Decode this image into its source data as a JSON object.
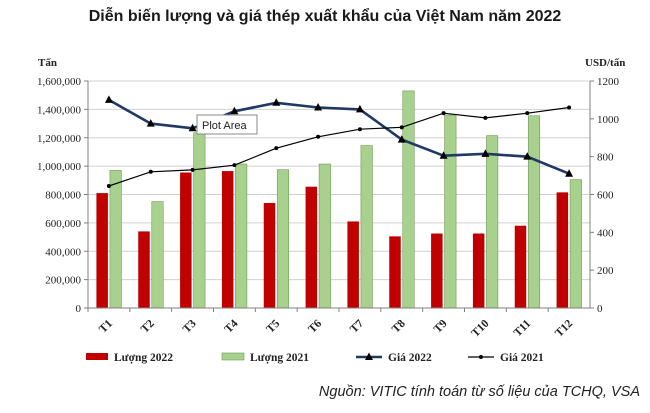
{
  "chart_data": {
    "type": "bar",
    "title": "Diễn biến lượng và giá thép xuất khẩu của Việt Nam năm 2022",
    "categories": [
      "T1",
      "T2",
      "T3",
      "T4",
      "T5",
      "T6",
      "T7",
      "T8",
      "T9",
      "T10",
      "T11",
      "T12"
    ],
    "y_left": {
      "label": "Tấn",
      "range": [
        0,
        1600000
      ],
      "ticks": [
        "0",
        "200,000",
        "400,000",
        "600,000",
        "800,000",
        "1,000,000",
        "1,200,000",
        "1,400,000",
        "1,600,000"
      ]
    },
    "y_right": {
      "label": "USD/tấn",
      "range": [
        0,
        1200
      ],
      "ticks": [
        "0",
        "200",
        "400",
        "600",
        "800",
        "1000",
        "1200"
      ]
    },
    "series": [
      {
        "name": "Lượng 2022",
        "kind": "bar",
        "axis": "left",
        "color": "#c00000",
        "values": [
          810000,
          540000,
          955000,
          965000,
          740000,
          855000,
          610000,
          505000,
          525000,
          525000,
          580000,
          815000
        ]
      },
      {
        "name": "Lượng 2021",
        "kind": "bar",
        "axis": "left",
        "color": "#a9d18e",
        "values": [
          970000,
          750000,
          1235000,
          1015000,
          975000,
          1015000,
          1145000,
          1530000,
          1360000,
          1215000,
          1355000,
          905000
        ]
      },
      {
        "name": "Giá 2022",
        "kind": "line",
        "axis": "right",
        "color": "#1f3864",
        "values": [
          1100,
          975,
          950,
          1040,
          1085,
          1060,
          1050,
          890,
          805,
          815,
          800,
          710
        ]
      },
      {
        "name": "Giá 2021",
        "kind": "line",
        "axis": "right",
        "color": "#000000",
        "values": [
          645,
          720,
          730,
          755,
          845,
          905,
          945,
          955,
          1030,
          1005,
          1030,
          1060
        ]
      }
    ],
    "tooltip": "Plot Area",
    "legend_position": "bottom",
    "grid": true
  },
  "source": "Nguồn: VITIC tính toán từ số liệu của TCHQ, VSA"
}
